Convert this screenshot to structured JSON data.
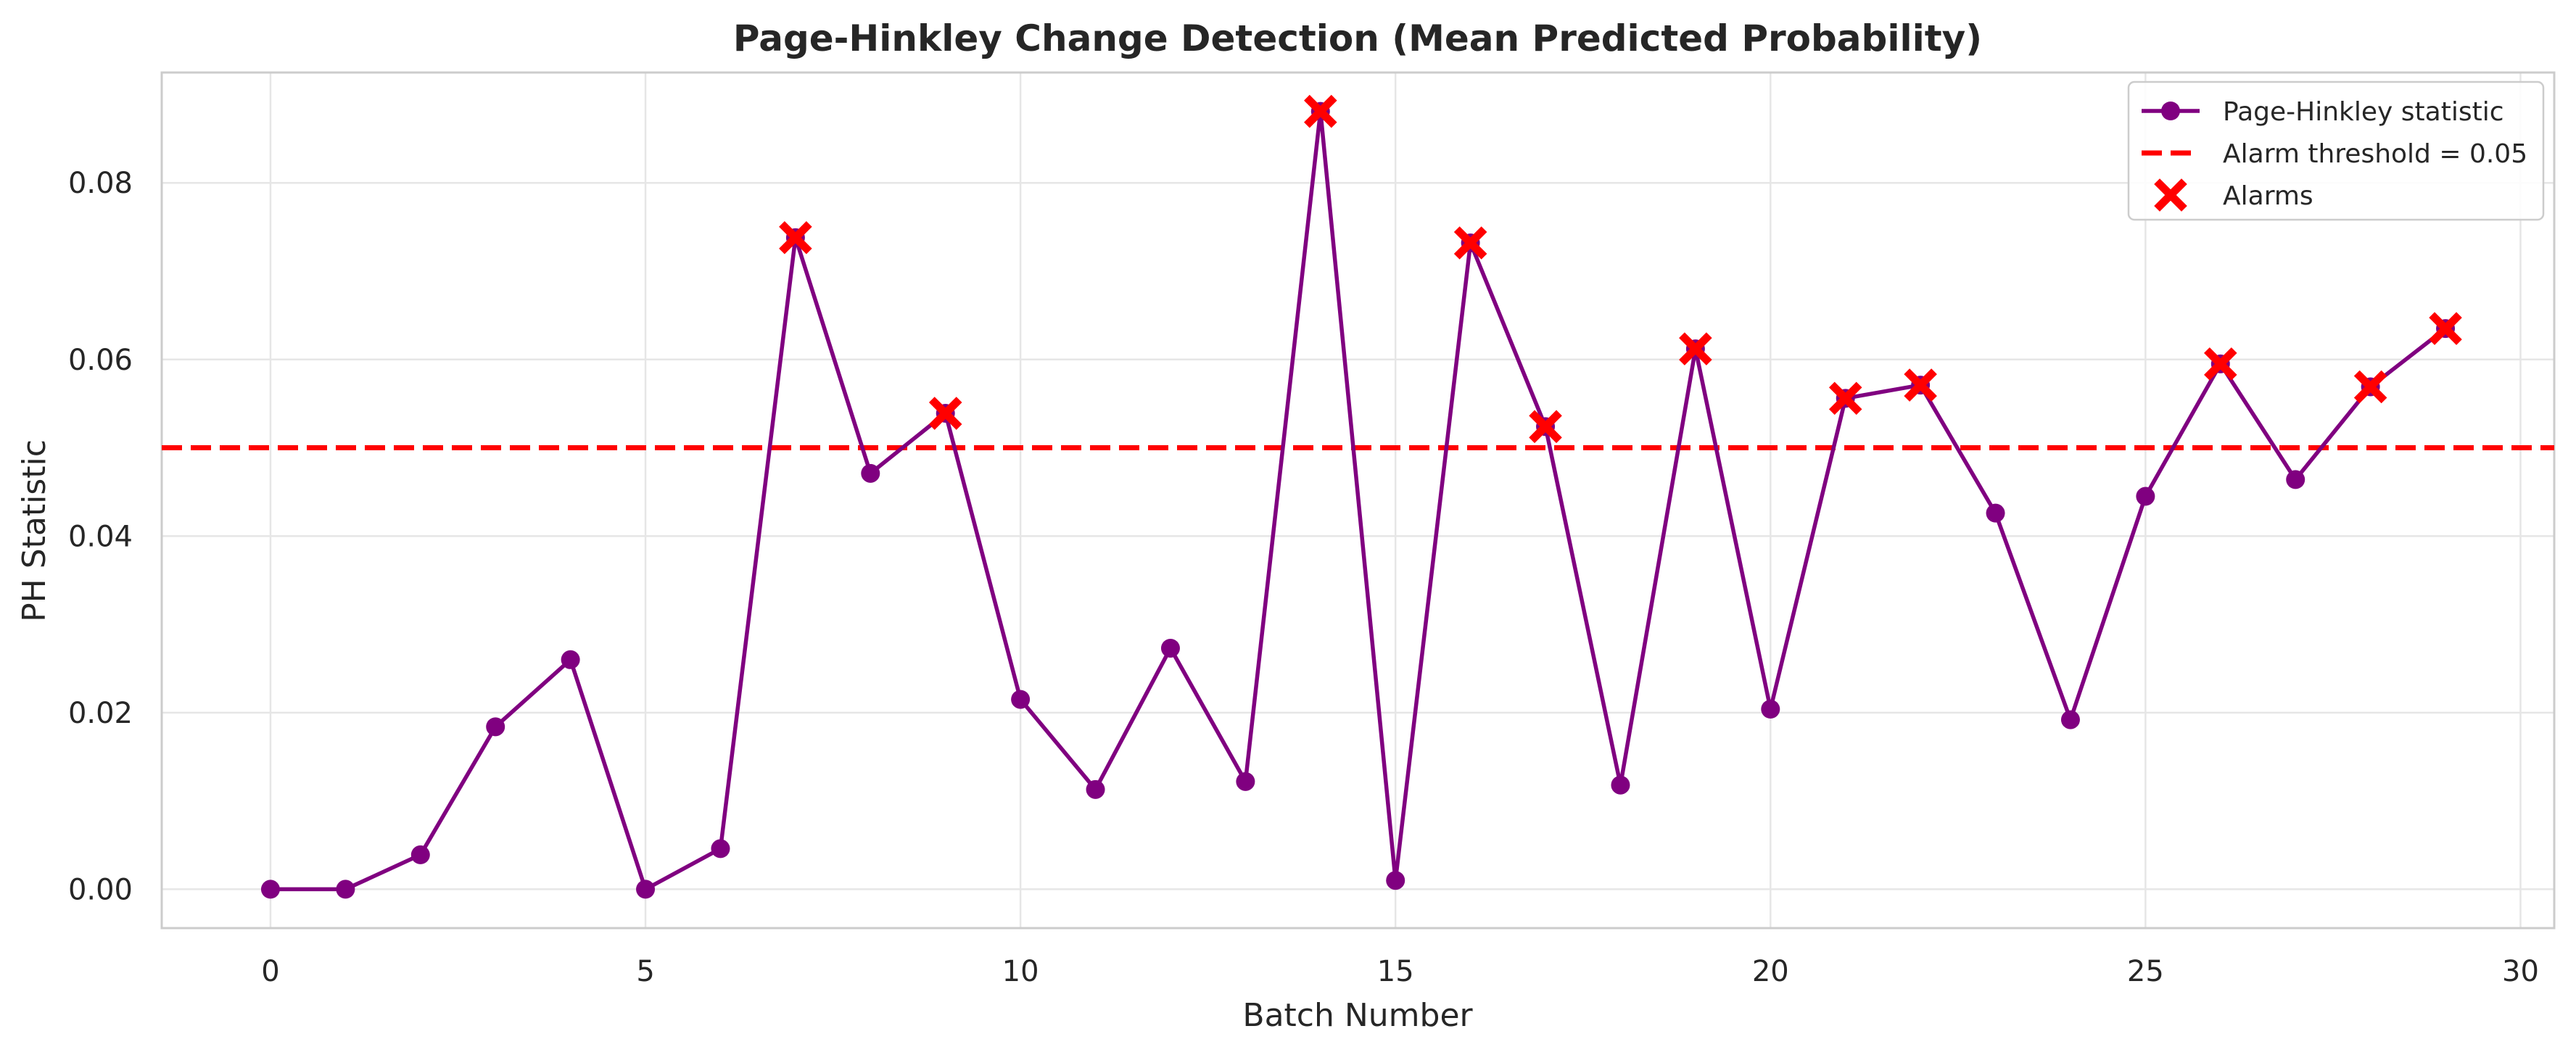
{
  "chart_data": {
    "type": "line",
    "title": "Page-Hinkley Change Detection (Mean Predicted Probability)",
    "xlabel": "Batch Number",
    "ylabel": "PH Statistic",
    "xlim": [
      -1.45,
      30.45
    ],
    "ylim": [
      -0.0044,
      0.0925
    ],
    "xticks": [
      0,
      5,
      10,
      15,
      20,
      25,
      30
    ],
    "xtick_labels": [
      "0",
      "5",
      "10",
      "15",
      "20",
      "25",
      "30"
    ],
    "yticks": [
      0.0,
      0.02,
      0.04,
      0.06,
      0.08
    ],
    "ytick_labels": [
      "0.00",
      "0.02",
      "0.04",
      "0.06",
      "0.08"
    ],
    "grid": true,
    "legend_position": "top-right",
    "series": [
      {
        "name": "Page-Hinkley statistic",
        "kind": "line-marker",
        "color": "#800080",
        "x": [
          0,
          1,
          2,
          3,
          4,
          5,
          6,
          7,
          8,
          9,
          10,
          11,
          12,
          13,
          14,
          15,
          16,
          17,
          18,
          19,
          20,
          21,
          22,
          23,
          24,
          25,
          26,
          27,
          28,
          29
        ],
        "values": [
          0.0,
          0.0,
          0.0039,
          0.0184,
          0.026,
          0.0,
          0.0046,
          0.0738,
          0.0471,
          0.0539,
          0.0215,
          0.0113,
          0.0273,
          0.0122,
          0.0881,
          0.001,
          0.0732,
          0.0524,
          0.0118,
          0.0612,
          0.0204,
          0.0556,
          0.0571,
          0.0426,
          0.0192,
          0.0445,
          0.0595,
          0.0464,
          0.0569,
          0.0635
        ]
      },
      {
        "name": "Alarm threshold = 0.05",
        "kind": "hline",
        "color": "#ff0000",
        "value": 0.05
      },
      {
        "name": "Alarms",
        "kind": "scatter-x",
        "color": "#ff0000",
        "x": [
          7,
          9,
          14,
          16,
          17,
          19,
          21,
          22,
          26,
          28,
          29
        ],
        "values": [
          0.0738,
          0.0539,
          0.0881,
          0.0732,
          0.0524,
          0.0612,
          0.0556,
          0.0571,
          0.0595,
          0.0569,
          0.0635
        ]
      }
    ]
  }
}
